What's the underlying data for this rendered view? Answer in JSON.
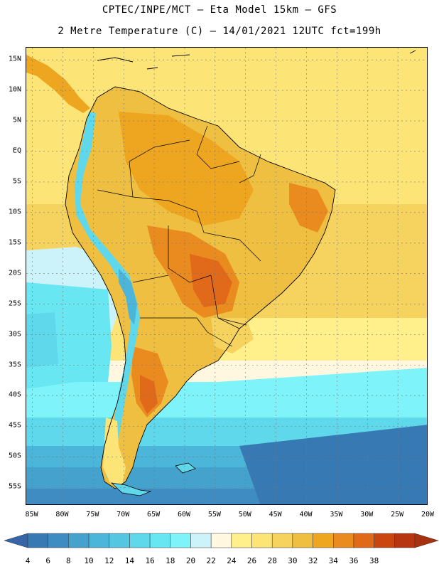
{
  "header": {
    "line1": "CPTEC/INPE/MCT –  Eta Model 15km – GFS",
    "line2": "2 Metre Temperature (C) – 14/01/2021 12UTC fct=199h"
  },
  "map": {
    "lat_range": [
      17,
      -58
    ],
    "lon_range": [
      -86,
      -20
    ],
    "lat_labels": [
      "15N",
      "10N",
      "5N",
      "EQ",
      "5S",
      "10S",
      "15S",
      "20S",
      "25S",
      "30S",
      "35S",
      "40S",
      "45S",
      "50S",
      "55S"
    ],
    "lat_values": [
      15,
      10,
      5,
      0,
      -5,
      -10,
      -15,
      -20,
      -25,
      -30,
      -35,
      -40,
      -45,
      -50,
      -55
    ],
    "lon_labels": [
      "85W",
      "80W",
      "75W",
      "70W",
      "65W",
      "60W",
      "55W",
      "50W",
      "45W",
      "40W",
      "35W",
      "30W",
      "25W",
      "20W"
    ],
    "lon_values": [
      -85,
      -80,
      -75,
      -70,
      -65,
      -60,
      -55,
      -50,
      -45,
      -40,
      -35,
      -30,
      -25,
      -20
    ]
  },
  "colorbar": {
    "labels": [
      "4",
      "6",
      "8",
      "10",
      "12",
      "14",
      "16",
      "18",
      "20",
      "22",
      "24",
      "26",
      "28",
      "30",
      "32",
      "34",
      "36",
      "38"
    ],
    "colors": [
      "#3779b3",
      "#3f8cc2",
      "#45a2cd",
      "#4bb6d9",
      "#55c6e2",
      "#5ed8ea",
      "#68e7f2",
      "#7ef4fa",
      "#cdf3fa",
      "#fff7e0",
      "#fff08c",
      "#fce477",
      "#f5d35e",
      "#efbf41",
      "#eea51f",
      "#e98b1f",
      "#e0691a",
      "#c94611",
      "#b83511"
    ],
    "low_color": "#3665a8",
    "high_color": "#a83210"
  }
}
